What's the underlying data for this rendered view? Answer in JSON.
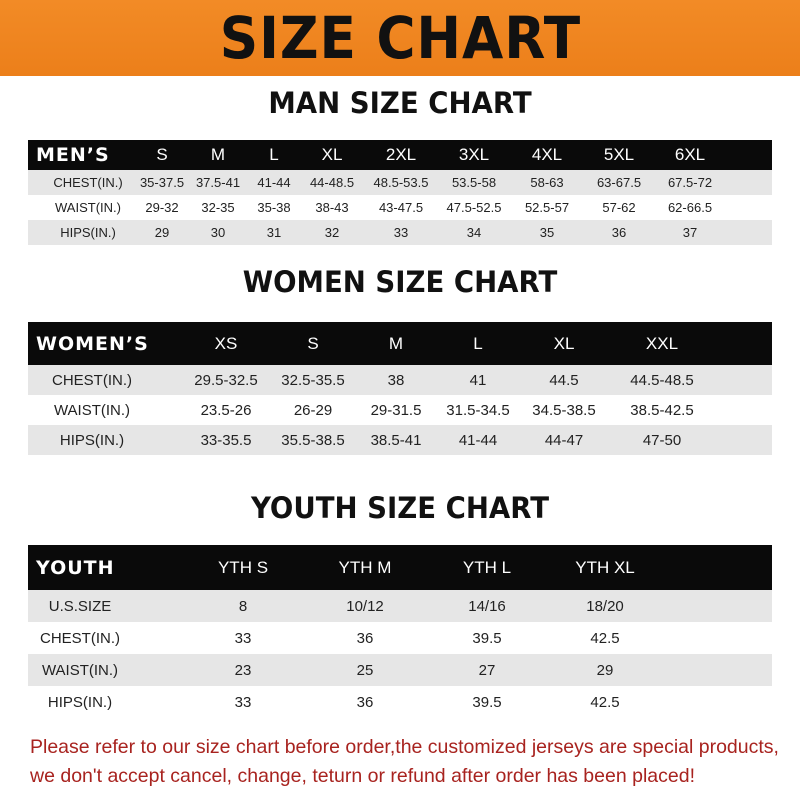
{
  "title": "SIZE CHART",
  "men": {
    "heading": "MAN SIZE CHART",
    "header": [
      "MEN’S",
      "S",
      "M",
      "L",
      "XL",
      "2XL",
      "3XL",
      "4XL",
      "5XL",
      "6XL"
    ],
    "rows": [
      [
        "CHEST(IN.)",
        "35-37.5",
        "37.5-41",
        "41-44",
        "44-48.5",
        "48.5-53.5",
        "53.5-58",
        "58-63",
        "63-67.5",
        "67.5-72"
      ],
      [
        "WAIST(IN.)",
        "29-32",
        "32-35",
        "35-38",
        "38-43",
        "43-47.5",
        "47.5-52.5",
        "52.5-57",
        "57-62",
        "62-66.5"
      ],
      [
        "HIPS(IN.)",
        "29",
        "30",
        "31",
        "32",
        "33",
        "34",
        "35",
        "36",
        "37"
      ]
    ]
  },
  "women": {
    "heading": "WOMEN SIZE CHART",
    "header": [
      "WOMEN’S",
      "XS",
      "S",
      "M",
      "L",
      "XL",
      "XXL"
    ],
    "rows": [
      [
        "CHEST(IN.)",
        "29.5-32.5",
        "32.5-35.5",
        "38",
        "41",
        "44.5",
        "44.5-48.5"
      ],
      [
        "WAIST(IN.)",
        "23.5-26",
        "26-29",
        "29-31.5",
        "31.5-34.5",
        "34.5-38.5",
        "38.5-42.5"
      ],
      [
        "HIPS(IN.)",
        "33-35.5",
        "35.5-38.5",
        "38.5-41",
        "41-44",
        "44-47",
        "47-50"
      ]
    ]
  },
  "youth": {
    "heading": "YOUTH SIZE CHART",
    "header": [
      "YOUTH",
      "YTH S",
      "YTH M",
      "YTH L",
      "YTH XL"
    ],
    "rows": [
      [
        "U.S.SIZE",
        "8",
        "10/12",
        "14/16",
        "18/20"
      ],
      [
        "CHEST(IN.)",
        "33",
        "36",
        "39.5",
        "42.5"
      ],
      [
        "WAIST(IN.)",
        "23",
        "25",
        "27",
        "29"
      ],
      [
        "HIPS(IN.)",
        "33",
        "36",
        "39.5",
        "42.5"
      ]
    ]
  },
  "note": {
    "line1": "Please refer to our size chart before order,the customized jerseys are special products,",
    "line2": "we don't accept cancel, change, teturn or refund after order has been placed!"
  },
  "colors": {
    "banner": "#ef8420",
    "header_row": "#0a0a0a",
    "stripe": "#e6e6e6",
    "note": "#a8231f"
  }
}
